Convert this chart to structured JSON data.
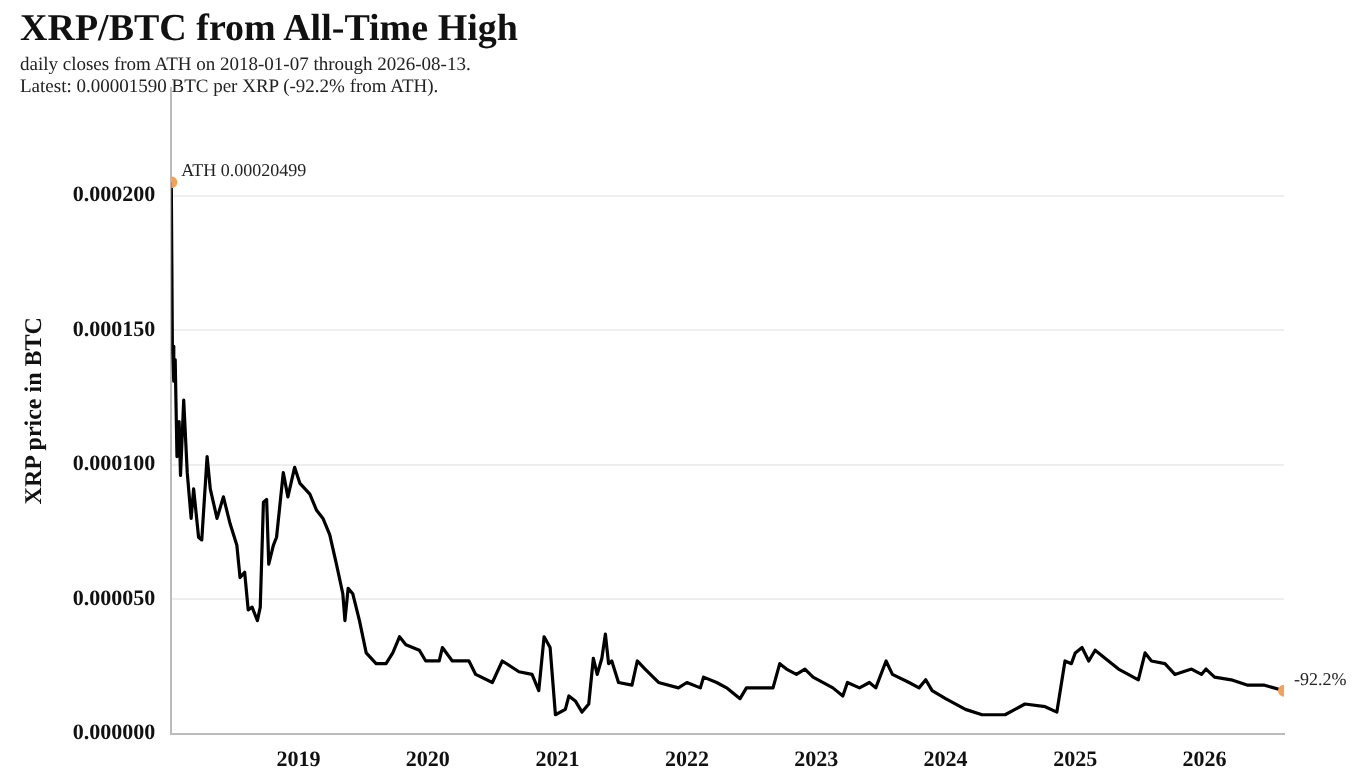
{
  "chart_data": {
    "type": "line",
    "title": "XRP/BTC from All-Time High",
    "subtitle": "daily closes from ATH on 2018-01-07 through 2026-08-13.\nLatest: 0.00001590 BTC per XRP (-92.2% from ATH).",
    "ylabel": "XRP price in BTC",
    "xlim": [
      "2018-01-07",
      "2026-08-13"
    ],
    "xticks": [
      "2019",
      "2020",
      "2021",
      "2022",
      "2023",
      "2024",
      "2025",
      "2026"
    ],
    "ylim": [
      0,
      0.00024
    ],
    "yticks": [
      {
        "value": 0,
        "label": "0.000000"
      },
      {
        "value": 5e-05,
        "label": "0.000050"
      },
      {
        "value": 0.0001,
        "label": "0.000100"
      },
      {
        "value": 0.00015,
        "label": "0.000150"
      },
      {
        "value": 0.0002,
        "label": "0.000200"
      }
    ],
    "grid": "y",
    "legend": false,
    "line_style": "solid",
    "annotations": [
      {
        "text": "ATH 0.00020499",
        "x": "2018-01-07",
        "y": 0.00020499
      },
      {
        "text": "-92.2%",
        "x": "2026-08-13",
        "y": 1.59e-05
      }
    ],
    "series": [
      {
        "color": "#000000",
        "marker": "none",
        "x": [
          "2018-01-07",
          "2018-01-10",
          "2018-01-14",
          "2018-01-18",
          "2018-01-23",
          "2018-01-29",
          "2018-02-02",
          "2018-02-11",
          "2018-02-21",
          "2018-03-04",
          "2018-03-11",
          "2018-03-25",
          "2018-04-03",
          "2018-04-18",
          "2018-04-27",
          "2018-05-16",
          "2018-06-03",
          "2018-06-22",
          "2018-07-11",
          "2018-07-20",
          "2018-08-02",
          "2018-08-12",
          "2018-08-23",
          "2018-09-07",
          "2018-09-15",
          "2018-09-24",
          "2018-10-03",
          "2018-10-09",
          "2018-10-22",
          "2018-10-31",
          "2018-11-19",
          "2018-12-02",
          "2018-12-21",
          "2019-01-05",
          "2019-02-02",
          "2019-02-21",
          "2019-03-11",
          "2019-03-30",
          "2019-04-18",
          "2019-05-06",
          "2019-05-12",
          "2019-05-21",
          "2019-06-03",
          "2019-06-22",
          "2019-07-11",
          "2019-08-08",
          "2019-09-05",
          "2019-09-24",
          "2019-10-13",
          "2019-10-31",
          "2019-12-08",
          "2019-12-26",
          "2020-02-02",
          "2020-02-11",
          "2020-03-10",
          "2020-04-26",
          "2020-05-15",
          "2020-07-01",
          "2020-07-29",
          "2020-09-14",
          "2020-10-21",
          "2020-11-09",
          "2020-11-24",
          "2020-12-11",
          "2020-12-26",
          "2021-01-23",
          "2021-02-02",
          "2021-02-21",
          "2021-03-11",
          "2021-03-30",
          "2021-04-12",
          "2021-04-23",
          "2021-05-06",
          "2021-05-16",
          "2021-05-25",
          "2021-06-03",
          "2021-06-22",
          "2021-07-30",
          "2021-08-14",
          "2021-09-05",
          "2021-10-13",
          "2021-12-08",
          "2022-01-01",
          "2022-02-08",
          "2022-02-17",
          "2022-03-26",
          "2022-04-23",
          "2022-05-31",
          "2022-06-18",
          "2022-09-01",
          "2022-09-20",
          "2022-10-09",
          "2022-11-06",
          "2022-11-30",
          "2022-12-23",
          "2023-02-17",
          "2023-03-17",
          "2023-03-30",
          "2023-05-03",
          "2023-05-31",
          "2023-06-18",
          "2023-07-17",
          "2023-08-04",
          "2023-09-20",
          "2023-10-18",
          "2023-11-06",
          "2023-11-24",
          "2024-01-01",
          "2024-02-26",
          "2024-04-13",
          "2024-06-17",
          "2024-08-12",
          "2024-10-08",
          "2024-11-10",
          "2024-12-03",
          "2024-12-21",
          "2025-01-01",
          "2025-01-20",
          "2025-02-08",
          "2025-02-26",
          "2025-03-26",
          "2025-05-03",
          "2025-06-28",
          "2025-07-17",
          "2025-08-04",
          "2025-09-11",
          "2025-10-09",
          "2025-11-25",
          "2025-12-23",
          "2026-01-05",
          "2026-01-29",
          "2026-03-17",
          "2026-05-03",
          "2026-06-19",
          "2026-08-13"
        ],
        "values": [
          0.00020499,
          0.000144,
          0.000131,
          0.000139,
          0.000103,
          0.000116,
          9.6e-05,
          0.000124,
          9.7e-05,
          8e-05,
          9.1e-05,
          7.3e-05,
          7.2e-05,
          0.000103,
          9.1e-05,
          8e-05,
          8.8e-05,
          7.8e-05,
          7e-05,
          5.8e-05,
          6e-05,
          4.6e-05,
          4.7e-05,
          4.2e-05,
          4.7e-05,
          8.6e-05,
          8.7e-05,
          6.3e-05,
          7e-05,
          7.3e-05,
          9.7e-05,
          8.8e-05,
          9.9e-05,
          9.3e-05,
          8.9e-05,
          8.3e-05,
          8e-05,
          7.4e-05,
          6.3e-05,
          5.2e-05,
          4.2e-05,
          5.4e-05,
          5.2e-05,
          4.2e-05,
          3e-05,
          2.6e-05,
          2.6e-05,
          3e-05,
          3.6e-05,
          3.3e-05,
          3.1e-05,
          2.7e-05,
          2.7e-05,
          3.2e-05,
          2.7e-05,
          2.7e-05,
          2.2e-05,
          1.9e-05,
          2.7e-05,
          2.3e-05,
          2.2e-05,
          1.6e-05,
          3.6e-05,
          3.2e-05,
          7e-06,
          9e-06,
          1.4e-05,
          1.2e-05,
          8e-06,
          1.1e-05,
          2.8e-05,
          2.2e-05,
          2.8e-05,
          3.7e-05,
          2.6e-05,
          2.7e-05,
          1.9e-05,
          1.8e-05,
          2.7e-05,
          2.4e-05,
          1.9e-05,
          1.7e-05,
          1.9e-05,
          1.7e-05,
          2.1e-05,
          1.9e-05,
          1.7e-05,
          1.3e-05,
          1.7e-05,
          1.7e-05,
          2.6e-05,
          2.4e-05,
          2.2e-05,
          2.4e-05,
          2.1e-05,
          1.7e-05,
          1.4e-05,
          1.9e-05,
          1.7e-05,
          1.9e-05,
          1.7e-05,
          2.7e-05,
          2.2e-05,
          1.9e-05,
          1.7e-05,
          2e-05,
          1.6e-05,
          1.3e-05,
          9e-06,
          7e-06,
          7e-06,
          1.1e-05,
          1e-05,
          8e-06,
          2.7e-05,
          2.6e-05,
          3e-05,
          3.2e-05,
          2.7e-05,
          3.1e-05,
          2.8e-05,
          2.4e-05,
          2e-05,
          3e-05,
          2.7e-05,
          2.6e-05,
          2.2e-05,
          2.4e-05,
          2.2e-05,
          2.4e-05,
          2.1e-05,
          2e-05,
          1.8e-05,
          1.8e-05,
          1.59e-05
        ]
      },
      {
        "type": "scatter",
        "marker": "circle",
        "color": "#f4a259",
        "x": [
          "2018-01-07",
          "2026-08-13"
        ],
        "values": [
          0.00020499,
          1.59e-05
        ]
      }
    ]
  }
}
